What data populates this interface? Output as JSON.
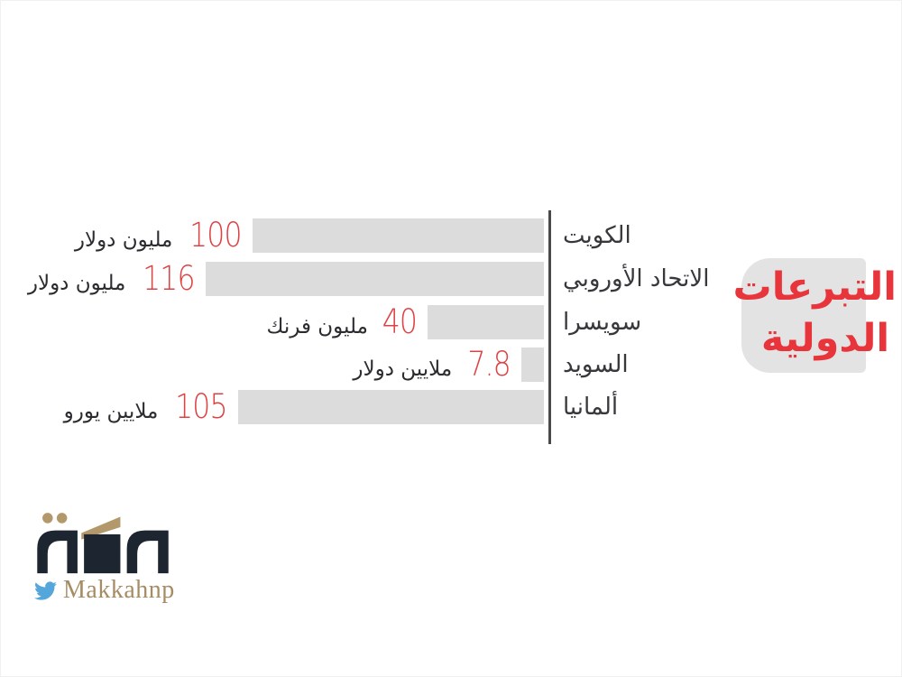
{
  "chart_data": {
    "type": "bar",
    "orientation": "horizontal",
    "title": "التبرعات الدولية",
    "title_lines": [
      "التبرعات",
      "الدولية"
    ],
    "categories": [
      "الكويت",
      "الاتحاد الأوروبي",
      "سويسرا",
      "السويد",
      "ألمانيا"
    ],
    "values": [
      100,
      116,
      40,
      7.8,
      105
    ],
    "axis_max": 116,
    "rows": [
      {
        "country": "الكويت",
        "number": "100",
        "unit": "مليون دولار",
        "value": 100
      },
      {
        "country": "الاتحاد الأوروبي",
        "number": "116",
        "unit": "مليون دولار",
        "value": 116
      },
      {
        "country": "سويسرا",
        "number": "40",
        "unit": "مليون فرنك",
        "value": 40
      },
      {
        "country": "السويد",
        "number": "7.8",
        "unit": "ملايين دولار",
        "value": 7.8
      },
      {
        "country": "ألمانيا",
        "number": "105",
        "unit": "ملايين يورو",
        "value": 105
      }
    ],
    "legend": null,
    "grid": false,
    "colors": {
      "bar": "#dcdcdc",
      "value_number": "#dd4345",
      "value_unit": "#2c2c30",
      "country_label": "#38383c",
      "axis_line": "#4a4a4a",
      "title_text": "#e8353b",
      "title_box": "#e3e3e3",
      "background": "#ffffff"
    }
  },
  "footer": {
    "logo_text": "مكة",
    "twitter_handle": "Makkahnp",
    "logo_colors": {
      "dark": "#1d2531",
      "gold": "#b3986b",
      "twitter_blue": "#55a6da"
    }
  }
}
